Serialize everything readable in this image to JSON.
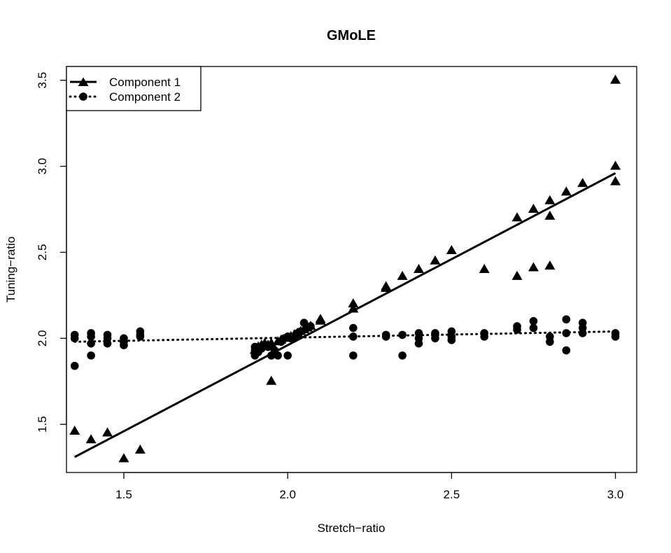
{
  "chart_data": {
    "type": "scatter",
    "title": "GMoLE",
    "xlabel": "Stretch−ratio",
    "ylabel": "Tuning−ratio",
    "xlim": [
      1.325,
      3.065
    ],
    "ylim": [
      1.22,
      3.58
    ],
    "xticks": [
      1.5,
      2.0,
      2.5,
      3.0
    ],
    "xtick_labels": [
      "1.5",
      "2.0",
      "2.5",
      "3.0"
    ],
    "yticks": [
      1.5,
      2.0,
      2.5,
      3.0,
      3.5
    ],
    "ytick_labels": [
      "1.5",
      "2.0",
      "2.5",
      "3.0",
      "3.5"
    ],
    "grid": false,
    "legend_position": "top-left",
    "series": [
      {
        "name": "Component 1",
        "marker": "triangle",
        "line_style": "solid",
        "color": "#000000",
        "points": [
          [
            1.35,
            1.46
          ],
          [
            1.4,
            1.41
          ],
          [
            1.45,
            1.45
          ],
          [
            1.5,
            1.3
          ],
          [
            1.55,
            1.35
          ],
          [
            1.9,
            1.93
          ],
          [
            1.91,
            1.95
          ],
          [
            1.92,
            1.96
          ],
          [
            1.93,
            1.97
          ],
          [
            1.94,
            1.96
          ],
          [
            1.95,
            1.75
          ],
          [
            1.95,
            1.97
          ],
          [
            1.97,
            1.98
          ],
          [
            1.98,
            1.99
          ],
          [
            2.0,
            2.0
          ],
          [
            2.01,
            2.01
          ],
          [
            2.02,
            2.02
          ],
          [
            2.03,
            2.03
          ],
          [
            2.04,
            2.04
          ],
          [
            2.05,
            2.05
          ],
          [
            2.06,
            2.06
          ],
          [
            2.07,
            2.07
          ],
          [
            2.1,
            2.1
          ],
          [
            2.1,
            2.11
          ],
          [
            2.2,
            2.17
          ],
          [
            2.2,
            2.2
          ],
          [
            2.3,
            2.29
          ],
          [
            2.3,
            2.3
          ],
          [
            2.35,
            2.36
          ],
          [
            2.4,
            2.4
          ],
          [
            2.45,
            2.45
          ],
          [
            2.5,
            2.51
          ],
          [
            2.6,
            2.4
          ],
          [
            2.7,
            2.36
          ],
          [
            2.7,
            2.7
          ],
          [
            2.75,
            2.41
          ],
          [
            2.75,
            2.75
          ],
          [
            2.8,
            2.42
          ],
          [
            2.8,
            2.71
          ],
          [
            2.8,
            2.8
          ],
          [
            2.85,
            2.85
          ],
          [
            2.9,
            2.9
          ],
          [
            3.0,
            2.91
          ],
          [
            3.0,
            3.0
          ],
          [
            3.0,
            3.5
          ]
        ],
        "fit_line": [
          [
            1.35,
            1.31
          ],
          [
            3.0,
            2.96
          ]
        ]
      },
      {
        "name": "Component 2",
        "marker": "circle",
        "line_style": "dotted",
        "color": "#000000",
        "points": [
          [
            1.35,
            1.84
          ],
          [
            1.35,
            2.0
          ],
          [
            1.35,
            2.02
          ],
          [
            1.4,
            1.9
          ],
          [
            1.4,
            1.97
          ],
          [
            1.4,
            2.01
          ],
          [
            1.4,
            2.03
          ],
          [
            1.45,
            1.97
          ],
          [
            1.45,
            2.0
          ],
          [
            1.45,
            2.02
          ],
          [
            1.5,
            1.96
          ],
          [
            1.5,
            1.98
          ],
          [
            1.5,
            2.0
          ],
          [
            1.55,
            2.01
          ],
          [
            1.55,
            2.02
          ],
          [
            1.55,
            2.04
          ],
          [
            1.9,
            1.9
          ],
          [
            1.9,
            1.93
          ],
          [
            1.9,
            1.95
          ],
          [
            1.91,
            1.92
          ],
          [
            1.92,
            1.94
          ],
          [
            1.93,
            1.96
          ],
          [
            1.94,
            1.95
          ],
          [
            1.95,
            1.9
          ],
          [
            1.96,
            1.93
          ],
          [
            1.97,
            1.9
          ],
          [
            1.98,
            1.98
          ],
          [
            1.99,
            2.0
          ],
          [
            2.0,
            1.9
          ],
          [
            2.0,
            2.01
          ],
          [
            2.01,
            2.0
          ],
          [
            2.02,
            2.01
          ],
          [
            2.03,
            2.03
          ],
          [
            2.04,
            2.04
          ],
          [
            2.05,
            2.09
          ],
          [
            2.06,
            2.06
          ],
          [
            2.07,
            2.07
          ],
          [
            2.2,
            1.9
          ],
          [
            2.2,
            2.01
          ],
          [
            2.2,
            2.06
          ],
          [
            2.3,
            2.01
          ],
          [
            2.3,
            2.02
          ],
          [
            2.35,
            1.9
          ],
          [
            2.35,
            2.02
          ],
          [
            2.4,
            1.97
          ],
          [
            2.4,
            2.0
          ],
          [
            2.4,
            2.03
          ],
          [
            2.45,
            2.0
          ],
          [
            2.45,
            2.02
          ],
          [
            2.45,
            2.03
          ],
          [
            2.5,
            1.99
          ],
          [
            2.5,
            2.01
          ],
          [
            2.5,
            2.04
          ],
          [
            2.6,
            2.01
          ],
          [
            2.6,
            2.03
          ],
          [
            2.7,
            2.05
          ],
          [
            2.7,
            2.07
          ],
          [
            2.75,
            2.06
          ],
          [
            2.75,
            2.1
          ],
          [
            2.8,
            1.98
          ],
          [
            2.8,
            2.01
          ],
          [
            2.85,
            1.93
          ],
          [
            2.85,
            2.03
          ],
          [
            2.85,
            2.11
          ],
          [
            2.9,
            2.03
          ],
          [
            2.9,
            2.06
          ],
          [
            2.9,
            2.09
          ],
          [
            3.0,
            2.01
          ],
          [
            3.0,
            2.03
          ]
        ],
        "fit_line": [
          [
            1.35,
            1.98
          ],
          [
            3.0,
            2.04
          ]
        ]
      }
    ]
  }
}
